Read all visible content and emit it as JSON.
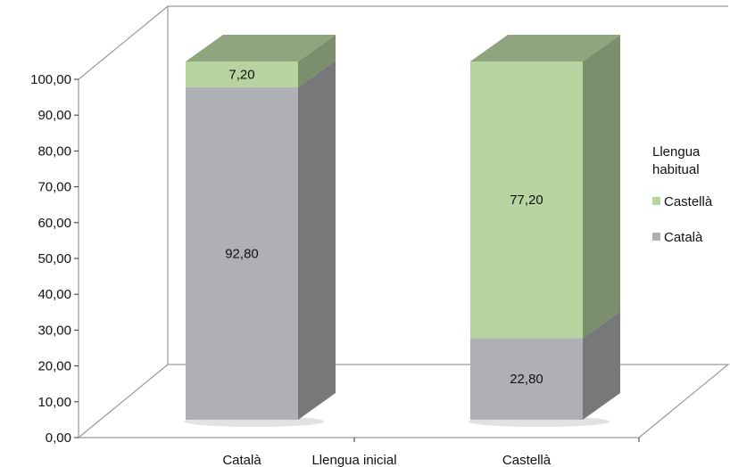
{
  "chart_data": {
    "type": "bar",
    "stacked": true,
    "three_d": true,
    "categories": [
      "Català",
      "Castellà"
    ],
    "xlabel": "Llengua inicial",
    "ylim": [
      0,
      100
    ],
    "yticks": [
      "0,00",
      "10,00",
      "20,00",
      "30,00",
      "40,00",
      "50,00",
      "60,00",
      "70,00",
      "80,00",
      "90,00",
      "100,00"
    ],
    "series": [
      {
        "name": "Català",
        "values": [
          92.8,
          22.8
        ],
        "labels": [
          "92,80",
          "22,80"
        ],
        "color": "#aeb0b3"
      },
      {
        "name": "Castellà",
        "values": [
          7.2,
          77.2
        ],
        "labels": [
          "7,20",
          "77,20"
        ],
        "color": "#b7d3a0"
      }
    ],
    "legend": {
      "title_lines": [
        "Llengua",
        "habitual"
      ],
      "position": "right",
      "order": [
        "Castellà",
        "Català"
      ]
    },
    "grid": false
  }
}
